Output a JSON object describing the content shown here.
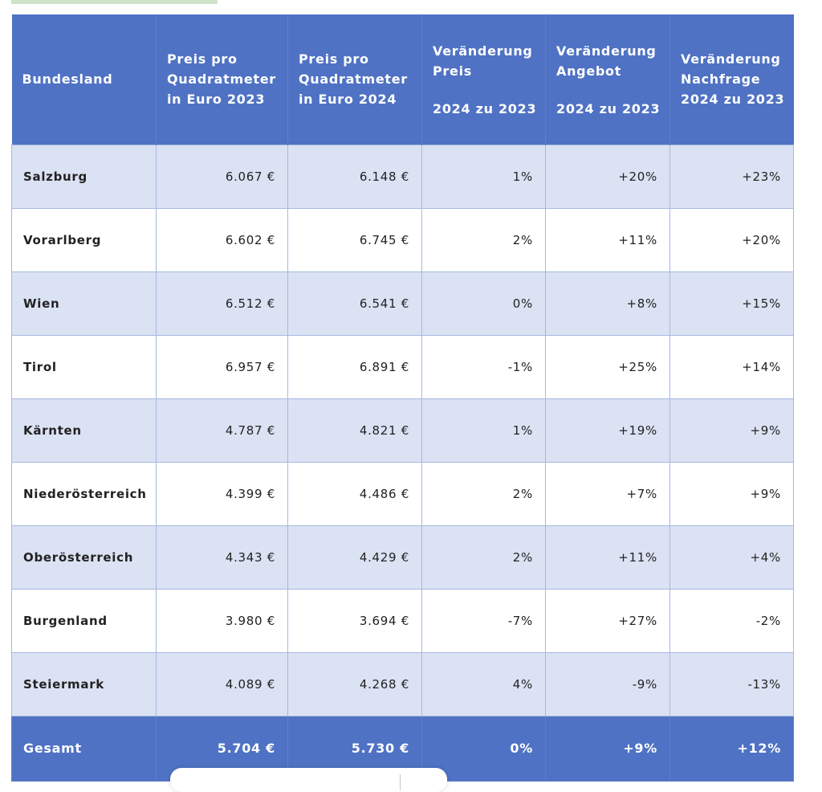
{
  "table": {
    "headers": [
      {
        "lines": [
          "Bundesland"
        ]
      },
      {
        "lines": [
          "Preis pro",
          "Quadratmeter",
          "in Euro 2023"
        ]
      },
      {
        "lines": [
          "Preis pro",
          "Quadratmeter",
          "in Euro 2024"
        ]
      },
      {
        "lines": [
          "Veränderung",
          "Preis",
          "2024 zu 2023"
        ]
      },
      {
        "lines": [
          "Veränderung",
          "Angebot",
          "2024 zu 2023"
        ]
      },
      {
        "lines": [
          "Veränderung",
          "Nachfrage",
          "2024 zu 2023"
        ]
      }
    ],
    "rows": [
      [
        "Salzburg",
        "6.067 €",
        "6.148 €",
        "1%",
        "+20%",
        "+23%"
      ],
      [
        "Vorarlberg",
        "6.602 €",
        "6.745 €",
        "2%",
        "+11%",
        "+20%"
      ],
      [
        "Wien",
        "6.512 €",
        "6.541 €",
        "0%",
        "+8%",
        "+15%"
      ],
      [
        "Tirol",
        "6.957 €",
        "6.891 €",
        "-1%",
        "+25%",
        "+14%"
      ],
      [
        "Kärnten",
        "4.787 €",
        "4.821 €",
        "1%",
        "+19%",
        "+9%"
      ],
      [
        "Niederösterreich",
        "4.399 €",
        "4.486 €",
        "2%",
        "+7%",
        "+9%"
      ],
      [
        "Oberösterreich",
        "4.343 €",
        "4.429 €",
        "2%",
        "+11%",
        "+4%"
      ],
      [
        "Burgenland",
        "3.980 €",
        "3.694 €",
        "-7%",
        "+27%",
        "-2%"
      ],
      [
        "Steiermark",
        "4.089 €",
        "4.268 €",
        "4%",
        "-9%",
        "-13%"
      ]
    ],
    "total": [
      "Gesamt",
      "5.704 €",
      "5.730 €",
      "0%",
      "+9%",
      "+12%"
    ]
  },
  "colors": {
    "header_bg": "#4f72c4",
    "row_shade": "#dbe2f3",
    "row_plain": "#ffffff",
    "grid": "#a6b8e0"
  }
}
